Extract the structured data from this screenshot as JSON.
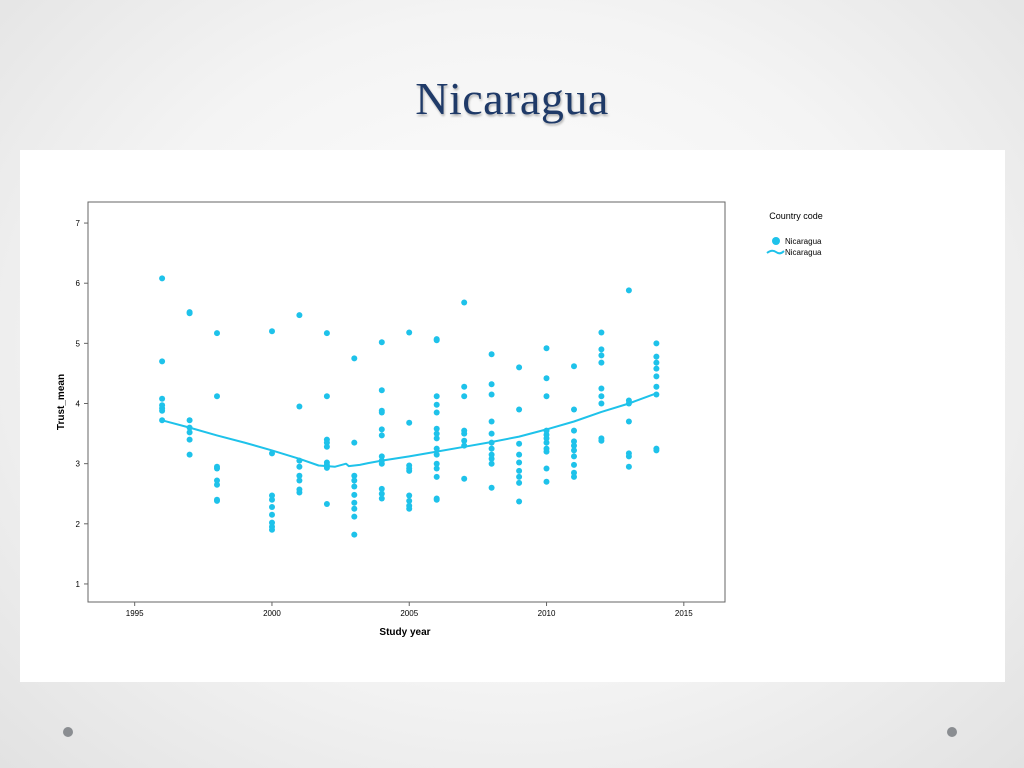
{
  "slide": {
    "title": "Nicaragua"
  },
  "chart_data": {
    "type": "scatter",
    "title": "",
    "xlabel": "Study year",
    "ylabel": "Trust_mean",
    "xlim": [
      1993.3,
      2016.5
    ],
    "ylim": [
      0.7,
      7.35
    ],
    "x_ticks": [
      1995,
      2000,
      2005,
      2010,
      2015
    ],
    "x_tick_labels": [
      "1995",
      "2000",
      "2005",
      "2010",
      "2015"
    ],
    "y_ticks": [
      1,
      2,
      3,
      4,
      5,
      6,
      7
    ],
    "y_tick_labels": [
      "1",
      "2",
      "3",
      "4",
      "5",
      "6",
      "7"
    ],
    "grid": false,
    "legend": {
      "title": "Country code",
      "position": "right",
      "entries": [
        {
          "label": "Nicaragua",
          "kind": "marker"
        },
        {
          "label": "Nicaragua",
          "kind": "line"
        }
      ]
    },
    "series": [
      {
        "name": "Nicaragua",
        "kind": "points",
        "color": "#1ec2ea",
        "points": [
          [
            1996,
            6.08
          ],
          [
            1996,
            4.7
          ],
          [
            1996,
            4.08
          ],
          [
            1996,
            3.97
          ],
          [
            1996,
            3.92
          ],
          [
            1996,
            3.88
          ],
          [
            1996,
            3.72
          ],
          [
            1997,
            5.52
          ],
          [
            1997,
            5.5
          ],
          [
            1997,
            3.72
          ],
          [
            1997,
            3.6
          ],
          [
            1997,
            3.52
          ],
          [
            1997,
            3.4
          ],
          [
            1997,
            3.15
          ],
          [
            1998,
            5.17
          ],
          [
            1998,
            4.12
          ],
          [
            1998,
            2.95
          ],
          [
            1998,
            2.92
          ],
          [
            1998,
            2.72
          ],
          [
            1998,
            2.65
          ],
          [
            1998,
            2.4
          ],
          [
            1998,
            2.38
          ],
          [
            2000,
            5.2
          ],
          [
            2000,
            3.17
          ],
          [
            2000,
            2.47
          ],
          [
            2000,
            2.4
          ],
          [
            2000,
            2.28
          ],
          [
            2000,
            2.15
          ],
          [
            2000,
            2.02
          ],
          [
            2000,
            1.95
          ],
          [
            2000,
            1.9
          ],
          [
            2001,
            5.47
          ],
          [
            2001,
            3.95
          ],
          [
            2001,
            3.05
          ],
          [
            2001,
            2.95
          ],
          [
            2001,
            2.8
          ],
          [
            2001,
            2.72
          ],
          [
            2001,
            2.57
          ],
          [
            2001,
            2.52
          ],
          [
            2002,
            5.17
          ],
          [
            2002,
            4.12
          ],
          [
            2002,
            3.4
          ],
          [
            2002,
            3.35
          ],
          [
            2002,
            3.28
          ],
          [
            2002,
            3.02
          ],
          [
            2002,
            2.98
          ],
          [
            2002,
            2.93
          ],
          [
            2002,
            2.33
          ],
          [
            2003,
            4.75
          ],
          [
            2003,
            3.35
          ],
          [
            2003,
            2.8
          ],
          [
            2003,
            2.72
          ],
          [
            2003,
            2.62
          ],
          [
            2003,
            2.48
          ],
          [
            2003,
            2.35
          ],
          [
            2003,
            2.25
          ],
          [
            2003,
            2.12
          ],
          [
            2003,
            1.82
          ],
          [
            2004,
            5.02
          ],
          [
            2004,
            4.22
          ],
          [
            2004,
            3.88
          ],
          [
            2004,
            3.85
          ],
          [
            2004,
            3.57
          ],
          [
            2004,
            3.47
          ],
          [
            2004,
            3.12
          ],
          [
            2004,
            3.05
          ],
          [
            2004,
            3.0
          ],
          [
            2004,
            2.58
          ],
          [
            2004,
            2.5
          ],
          [
            2004,
            2.42
          ],
          [
            2005,
            5.18
          ],
          [
            2005,
            3.68
          ],
          [
            2005,
            2.97
          ],
          [
            2005,
            2.92
          ],
          [
            2005,
            2.88
          ],
          [
            2005,
            2.47
          ],
          [
            2005,
            2.38
          ],
          [
            2005,
            2.3
          ],
          [
            2005,
            2.25
          ],
          [
            2006,
            5.07
          ],
          [
            2006,
            5.05
          ],
          [
            2006,
            4.12
          ],
          [
            2006,
            3.98
          ],
          [
            2006,
            3.85
          ],
          [
            2006,
            3.58
          ],
          [
            2006,
            3.5
          ],
          [
            2006,
            3.42
          ],
          [
            2006,
            3.25
          ],
          [
            2006,
            3.15
          ],
          [
            2006,
            3.0
          ],
          [
            2006,
            2.92
          ],
          [
            2006,
            2.78
          ],
          [
            2006,
            2.42
          ],
          [
            2006,
            2.4
          ],
          [
            2007,
            5.68
          ],
          [
            2007,
            4.28
          ],
          [
            2007,
            4.12
          ],
          [
            2007,
            3.55
          ],
          [
            2007,
            3.5
          ],
          [
            2007,
            3.38
          ],
          [
            2007,
            3.3
          ],
          [
            2007,
            2.75
          ],
          [
            2008,
            4.82
          ],
          [
            2008,
            4.32
          ],
          [
            2008,
            4.15
          ],
          [
            2008,
            3.7
          ],
          [
            2008,
            3.5
          ],
          [
            2008,
            3.35
          ],
          [
            2008,
            3.25
          ],
          [
            2008,
            3.15
          ],
          [
            2008,
            3.08
          ],
          [
            2008,
            3.0
          ],
          [
            2008,
            2.6
          ],
          [
            2009,
            4.6
          ],
          [
            2009,
            3.9
          ],
          [
            2009,
            3.33
          ],
          [
            2009,
            3.15
          ],
          [
            2009,
            3.02
          ],
          [
            2009,
            2.88
          ],
          [
            2009,
            2.78
          ],
          [
            2009,
            2.68
          ],
          [
            2009,
            2.37
          ],
          [
            2010,
            4.92
          ],
          [
            2010,
            4.42
          ],
          [
            2010,
            4.12
          ],
          [
            2010,
            3.55
          ],
          [
            2010,
            3.48
          ],
          [
            2010,
            3.42
          ],
          [
            2010,
            3.35
          ],
          [
            2010,
            3.25
          ],
          [
            2010,
            3.2
          ],
          [
            2010,
            2.92
          ],
          [
            2010,
            2.7
          ],
          [
            2011,
            4.62
          ],
          [
            2011,
            3.9
          ],
          [
            2011,
            3.55
          ],
          [
            2011,
            3.37
          ],
          [
            2011,
            3.3
          ],
          [
            2011,
            3.22
          ],
          [
            2011,
            3.12
          ],
          [
            2011,
            2.98
          ],
          [
            2011,
            2.85
          ],
          [
            2011,
            2.78
          ],
          [
            2012,
            5.18
          ],
          [
            2012,
            4.9
          ],
          [
            2012,
            4.8
          ],
          [
            2012,
            4.68
          ],
          [
            2012,
            4.25
          ],
          [
            2012,
            4.12
          ],
          [
            2012,
            4.0
          ],
          [
            2012,
            3.42
          ],
          [
            2012,
            3.38
          ],
          [
            2013,
            5.88
          ],
          [
            2013,
            4.05
          ],
          [
            2013,
            4.0
          ],
          [
            2013,
            3.7
          ],
          [
            2013,
            3.17
          ],
          [
            2013,
            3.12
          ],
          [
            2013,
            2.95
          ],
          [
            2014,
            5.0
          ],
          [
            2014,
            4.78
          ],
          [
            2014,
            4.68
          ],
          [
            2014,
            4.58
          ],
          [
            2014,
            4.45
          ],
          [
            2014,
            4.28
          ],
          [
            2014,
            4.15
          ],
          [
            2014,
            3.25
          ],
          [
            2014,
            3.22
          ]
        ]
      },
      {
        "name": "Nicaragua",
        "kind": "fit-line",
        "color": "#1ec2ea",
        "points": [
          [
            1996,
            3.72
          ],
          [
            1997,
            3.6
          ],
          [
            1998,
            3.47
          ],
          [
            1999,
            3.35
          ],
          [
            2000,
            3.22
          ],
          [
            2001,
            3.08
          ],
          [
            2001.7,
            2.97
          ],
          [
            2002.3,
            2.95
          ],
          [
            2002.7,
            3.0
          ],
          [
            2002.8,
            2.96
          ],
          [
            2003.2,
            2.98
          ],
          [
            2003.5,
            3.01
          ],
          [
            2004,
            3.05
          ],
          [
            2005,
            3.12
          ],
          [
            2006,
            3.2
          ],
          [
            2007,
            3.28
          ],
          [
            2008,
            3.36
          ],
          [
            2009,
            3.45
          ],
          [
            2010,
            3.57
          ],
          [
            2011,
            3.7
          ],
          [
            2012,
            3.86
          ],
          [
            2013,
            4.0
          ],
          [
            2014,
            4.17
          ]
        ]
      }
    ]
  }
}
